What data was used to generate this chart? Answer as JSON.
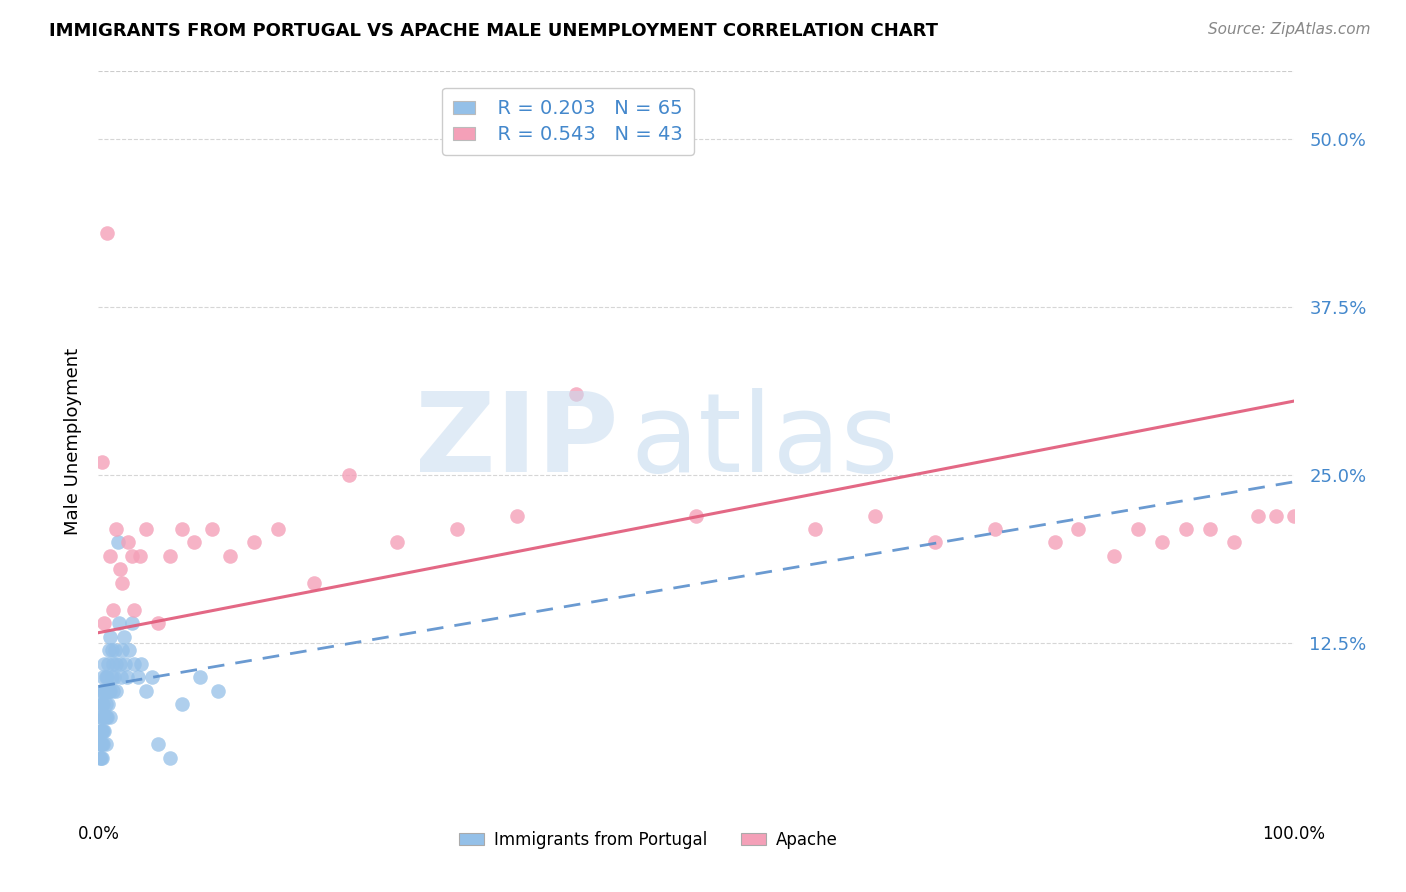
{
  "title": "IMMIGRANTS FROM PORTUGAL VS APACHE MALE UNEMPLOYMENT CORRELATION CHART",
  "source": "Source: ZipAtlas.com",
  "ylabel": "Male Unemployment",
  "ytick_labels": [
    "12.5%",
    "25.0%",
    "37.5%",
    "50.0%"
  ],
  "ytick_values": [
    0.125,
    0.25,
    0.375,
    0.5
  ],
  "xlim": [
    0.0,
    1.0
  ],
  "ylim": [
    0.0,
    0.55
  ],
  "legend_r1": "R = 0.203",
  "legend_n1": "N = 65",
  "legend_r2": "R = 0.543",
  "legend_n2": "N = 43",
  "color_blue": "#94C0E8",
  "color_pink": "#F4A0B8",
  "color_blue_line": "#5A8FCC",
  "color_pink_line": "#E05878",
  "color_grid": "#CCCCCC",
  "portugal_x": [
    0.001,
    0.001,
    0.001,
    0.001,
    0.002,
    0.002,
    0.002,
    0.002,
    0.002,
    0.002,
    0.003,
    0.003,
    0.003,
    0.003,
    0.003,
    0.004,
    0.004,
    0.004,
    0.004,
    0.005,
    0.005,
    0.005,
    0.005,
    0.006,
    0.006,
    0.006,
    0.006,
    0.007,
    0.007,
    0.007,
    0.008,
    0.008,
    0.009,
    0.009,
    0.01,
    0.01,
    0.01,
    0.011,
    0.011,
    0.012,
    0.012,
    0.013,
    0.014,
    0.015,
    0.015,
    0.016,
    0.017,
    0.018,
    0.019,
    0.02,
    0.021,
    0.022,
    0.024,
    0.026,
    0.028,
    0.03,
    0.033,
    0.036,
    0.04,
    0.045,
    0.05,
    0.06,
    0.07,
    0.085,
    0.1
  ],
  "portugal_y": [
    0.04,
    0.05,
    0.06,
    0.07,
    0.04,
    0.05,
    0.06,
    0.07,
    0.08,
    0.09,
    0.04,
    0.05,
    0.06,
    0.08,
    0.09,
    0.05,
    0.06,
    0.08,
    0.1,
    0.06,
    0.07,
    0.09,
    0.11,
    0.05,
    0.07,
    0.08,
    0.1,
    0.07,
    0.09,
    0.1,
    0.08,
    0.11,
    0.09,
    0.12,
    0.07,
    0.09,
    0.13,
    0.1,
    0.12,
    0.09,
    0.11,
    0.1,
    0.12,
    0.09,
    0.11,
    0.2,
    0.14,
    0.11,
    0.1,
    0.12,
    0.13,
    0.11,
    0.1,
    0.12,
    0.14,
    0.11,
    0.1,
    0.11,
    0.09,
    0.1,
    0.05,
    0.04,
    0.08,
    0.1,
    0.09
  ],
  "apache_x": [
    0.003,
    0.005,
    0.007,
    0.01,
    0.012,
    0.015,
    0.018,
    0.02,
    0.025,
    0.028,
    0.03,
    0.035,
    0.04,
    0.05,
    0.06,
    0.07,
    0.08,
    0.095,
    0.11,
    0.13,
    0.15,
    0.18,
    0.21,
    0.25,
    0.3,
    0.35,
    0.4,
    0.5,
    0.6,
    0.65,
    0.7,
    0.75,
    0.8,
    0.82,
    0.85,
    0.87,
    0.89,
    0.91,
    0.93,
    0.95,
    0.97,
    0.985,
    1.0
  ],
  "apache_y": [
    0.26,
    0.14,
    0.43,
    0.19,
    0.15,
    0.21,
    0.18,
    0.17,
    0.2,
    0.19,
    0.15,
    0.19,
    0.21,
    0.14,
    0.19,
    0.21,
    0.2,
    0.21,
    0.19,
    0.2,
    0.21,
    0.17,
    0.25,
    0.2,
    0.21,
    0.22,
    0.31,
    0.22,
    0.21,
    0.22,
    0.2,
    0.21,
    0.2,
    0.21,
    0.19,
    0.21,
    0.2,
    0.21,
    0.21,
    0.2,
    0.22,
    0.22,
    0.22
  ],
  "blue_line_x0": 0.0,
  "blue_line_y0": 0.093,
  "blue_line_x1": 1.0,
  "blue_line_y1": 0.245,
  "pink_line_x0": 0.0,
  "pink_line_y0": 0.133,
  "pink_line_x1": 1.0,
  "pink_line_y1": 0.305
}
